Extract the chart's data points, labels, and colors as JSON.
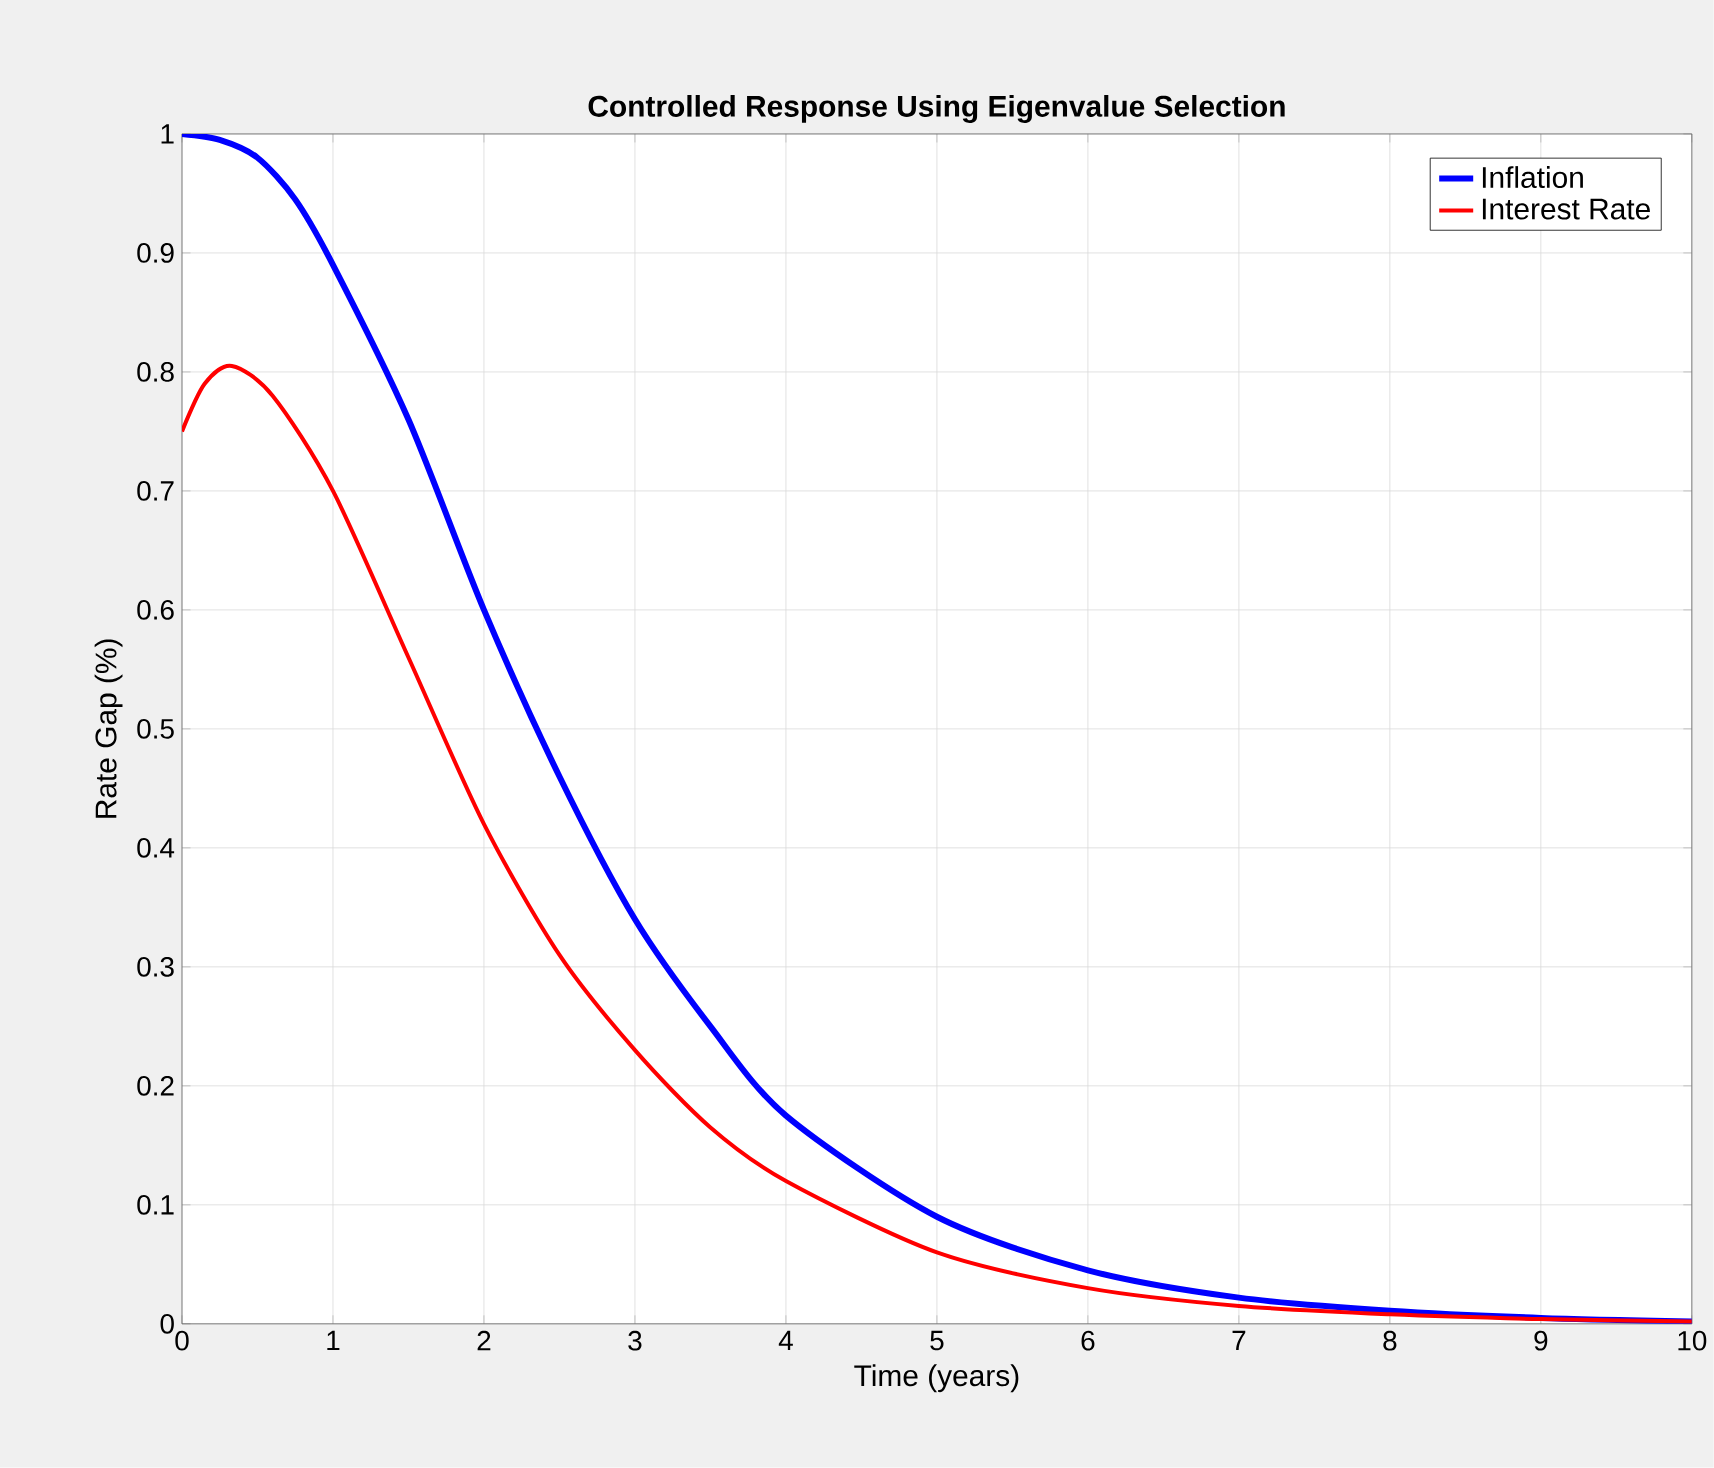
{
  "chart_data": {
    "type": "line",
    "title": "Controlled Response Using Eigenvalue Selection",
    "xlabel": "Time (years)",
    "ylabel": "Rate Gap (%)",
    "x": [
      0,
      0.25,
      0.5,
      0.75,
      1,
      1.5,
      2,
      2.5,
      3,
      3.5,
      4,
      5,
      6,
      7,
      8,
      9,
      10
    ],
    "series": [
      {
        "name": "Inflation",
        "color": "#0000ff",
        "values": [
          1.0,
          0.995,
          0.98,
          0.945,
          0.89,
          0.76,
          0.6,
          0.46,
          0.34,
          0.25,
          0.175,
          0.09,
          0.045,
          0.022,
          0.011,
          0.005,
          0.002
        ]
      },
      {
        "name": "Interest Rate",
        "color": "#ff0000",
        "x": [
          0,
          0.15,
          0.33,
          0.6,
          1,
          1.5,
          2,
          2.5,
          3,
          3.5,
          4,
          5,
          6,
          7,
          8,
          9,
          10
        ],
        "values": [
          0.75,
          0.79,
          0.805,
          0.78,
          0.7,
          0.56,
          0.42,
          0.31,
          0.23,
          0.165,
          0.12,
          0.06,
          0.03,
          0.015,
          0.008,
          0.004,
          0.002
        ]
      }
    ],
    "xlim": [
      0,
      10
    ],
    "ylim": [
      0,
      1
    ],
    "xticks": [
      0,
      1,
      2,
      3,
      4,
      5,
      6,
      7,
      8,
      9,
      10
    ],
    "yticks": [
      0,
      0.1,
      0.2,
      0.3,
      0.4,
      0.5,
      0.6,
      0.7,
      0.8,
      0.9,
      1
    ],
    "grid": true,
    "legend": "top right",
    "line_style": "solid",
    "marker": "none"
  }
}
